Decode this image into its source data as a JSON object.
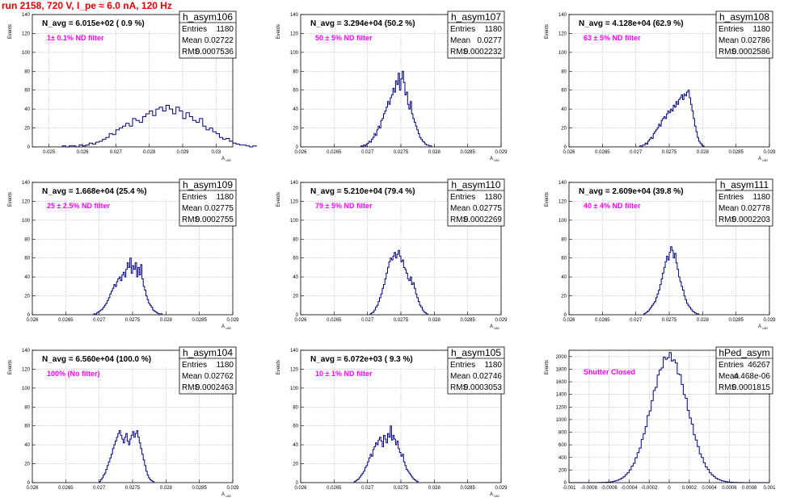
{
  "header": {
    "title": "run 2158,   720 V, I_pe ≈ 6.0 nA, 120 Hz"
  },
  "colors": {
    "histogram": "#000080",
    "annotation": "#ff00ff",
    "title": "#e00000",
    "grid": "#b0b0b0"
  },
  "chart_data": [
    {
      "type": "bar",
      "name": "h_asym106",
      "stats": {
        "entries_label": "Entries",
        "entries": "1180",
        "mean_label": "Mean",
        "mean": "0.02722",
        "rms_label": "RMS",
        "rms": "0.0007536"
      },
      "navg_text": "N_avg = 6.015e+02 ( 0.9 %)",
      "filter_text": "1± 0.1% ND filter",
      "xlabel": "A_UID",
      "ylabel": "Events",
      "xlim": [
        0.0245,
        0.0305
      ],
      "ylim": [
        0,
        140
      ],
      "xticks": [
        "0.025",
        "0.026",
        "0.027",
        "0.028",
        "0.029",
        "0.03"
      ],
      "xtick_values": [
        0.025,
        0.026,
        0.027,
        0.028,
        0.029,
        0.03
      ],
      "yticks": [
        "0",
        "20",
        "40",
        "60",
        "80",
        "100",
        "120",
        "140"
      ],
      "ytick_values": [
        0,
        20,
        40,
        60,
        80,
        100,
        120,
        140
      ],
      "bin_lo": 0.0254,
      "bin_w": 0.0001,
      "values": [
        1,
        0,
        1,
        1,
        0,
        2,
        1,
        2,
        4,
        3,
        5,
        6,
        8,
        10,
        14,
        13,
        18,
        20,
        22,
        25,
        22,
        30,
        28,
        26,
        32,
        35,
        38,
        33,
        40,
        42,
        38,
        44,
        40,
        35,
        42,
        38,
        30,
        36,
        32,
        28,
        26,
        30,
        22,
        18,
        20,
        16,
        14,
        10,
        8,
        9,
        6,
        4,
        3,
        2,
        2,
        1,
        0,
        1
      ]
    },
    {
      "type": "bar",
      "name": "h_asym107",
      "stats": {
        "entries_label": "Entries",
        "entries": "1180",
        "mean_label": "Mean",
        "mean": "0.0277",
        "rms_label": "RMS",
        "rms": "0.0002232"
      },
      "navg_text": "N_avg = 3.294e+04 (50.2 %)",
      "filter_text": "50 ± 5% ND filter",
      "xlabel": "A_UID",
      "ylabel": "Events",
      "xlim": [
        0.026,
        0.029
      ],
      "ylim": [
        0,
        140
      ],
      "xticks": [
        "0.026",
        "0.0265",
        "0.027",
        "0.0275",
        "0.028",
        "0.0285",
        "0.029"
      ],
      "xtick_values": [
        0.026,
        0.0265,
        0.027,
        0.0275,
        0.028,
        0.0285,
        0.029
      ],
      "yticks": [
        "0",
        "20",
        "40",
        "60",
        "80",
        "100",
        "120",
        "140"
      ],
      "ytick_values": [
        0,
        20,
        40,
        60,
        80,
        100,
        120,
        140
      ],
      "bin_lo": 0.0269,
      "bin_w": 2e-05,
      "values": [
        1,
        0,
        2,
        1,
        3,
        4,
        6,
        5,
        8,
        10,
        14,
        12,
        18,
        22,
        20,
        28,
        30,
        35,
        38,
        42,
        48,
        45,
        52,
        55,
        62,
        58,
        70,
        66,
        78,
        60,
        72,
        80,
        68,
        55,
        58,
        45,
        40,
        48,
        35,
        30,
        26,
        22,
        18,
        14,
        10,
        8,
        6,
        5,
        3,
        2,
        2,
        1,
        1
      ]
    },
    {
      "type": "bar",
      "name": "h_asym108",
      "stats": {
        "entries_label": "Entries",
        "entries": "1180",
        "mean_label": "Mean",
        "mean": "0.02786",
        "rms_label": "RMS",
        "rms": "0.0002586"
      },
      "navg_text": "N_avg = 4.128e+04 (62.9 %)",
      "filter_text": "63 ± 5% ND filter",
      "xlabel": "A_UID",
      "ylabel": "Events",
      "xlim": [
        0.026,
        0.029
      ],
      "ylim": [
        0,
        140
      ],
      "xticks": [
        "0.026",
        "0.0265",
        "0.027",
        "0.0275",
        "0.028",
        "0.0285",
        "0.029"
      ],
      "xtick_values": [
        0.026,
        0.0265,
        0.027,
        0.0275,
        0.028,
        0.0285,
        0.029
      ],
      "yticks": [
        "0",
        "20",
        "40",
        "60",
        "80",
        "100",
        "120",
        "140"
      ],
      "ytick_values": [
        0,
        20,
        40,
        60,
        80,
        100,
        120,
        140
      ],
      "bin_lo": 0.02706,
      "bin_w": 2e-05,
      "values": [
        1,
        0,
        2,
        2,
        4,
        3,
        6,
        8,
        10,
        9,
        14,
        16,
        18,
        20,
        24,
        22,
        28,
        30,
        32,
        30,
        35,
        38,
        36,
        40,
        38,
        44,
        42,
        48,
        45,
        50,
        52,
        55,
        50,
        56,
        54,
        58,
        60,
        52,
        45,
        38,
        30,
        22,
        16,
        10,
        6,
        4,
        2,
        1
      ]
    },
    {
      "type": "bar",
      "name": "h_asym109",
      "stats": {
        "entries_label": "Entries",
        "entries": "1180",
        "mean_label": "Mean",
        "mean": "0.02775",
        "rms_label": "RMS",
        "rms": "0.0002755"
      },
      "navg_text": "N_avg = 1.668e+04 (25.4 %)",
      "filter_text": "25 ± 2.5% ND filter",
      "xlabel": "A_UID",
      "ylabel": "Events",
      "xlim": [
        0.026,
        0.029
      ],
      "ylim": [
        0,
        140
      ],
      "xticks": [
        "0.026",
        "0.0265",
        "0.027",
        "0.0275",
        "0.028",
        "0.0285",
        "0.029"
      ],
      "xtick_values": [
        0.026,
        0.0265,
        0.027,
        0.0275,
        0.028,
        0.0285,
        0.029
      ],
      "yticks": [
        "0",
        "20",
        "40",
        "60",
        "80",
        "100",
        "120",
        "140"
      ],
      "ytick_values": [
        0,
        20,
        40,
        60,
        80,
        100,
        120,
        140
      ],
      "bin_lo": 0.02692,
      "bin_w": 2e-05,
      "values": [
        1,
        0,
        2,
        3,
        4,
        5,
        6,
        8,
        10,
        12,
        15,
        18,
        22,
        25,
        28,
        32,
        30,
        35,
        38,
        40,
        36,
        42,
        45,
        40,
        48,
        55,
        50,
        60,
        44,
        52,
        48,
        55,
        40,
        50,
        42,
        53,
        38,
        30,
        26,
        20,
        16,
        12,
        10,
        8,
        5,
        4,
        3,
        2,
        1,
        1,
        1
      ]
    },
    {
      "type": "bar",
      "name": "h_asym110",
      "stats": {
        "entries_label": "Entries",
        "entries": "1180",
        "mean_label": "Mean",
        "mean": "0.02775",
        "rms_label": "RMS",
        "rms": "0.0002269"
      },
      "navg_text": "N_avg = 5.210e+04 (79.4 %)",
      "filter_text": "79 ± 5% ND filter",
      "xlabel": "A_UID",
      "ylabel": "Events",
      "xlim": [
        0.026,
        0.029
      ],
      "ylim": [
        0,
        140
      ],
      "xticks": [
        "0.026",
        "0.0265",
        "0.027",
        "0.0275",
        "0.028",
        "0.0285",
        "0.029"
      ],
      "xtick_values": [
        0.026,
        0.0265,
        0.027,
        0.0275,
        0.028,
        0.0285,
        0.029
      ],
      "yticks": [
        "0",
        "20",
        "40",
        "60",
        "80",
        "100",
        "120",
        "140"
      ],
      "ytick_values": [
        0,
        20,
        40,
        60,
        80,
        100,
        120,
        140
      ],
      "bin_lo": 0.02704,
      "bin_w": 2e-05,
      "values": [
        1,
        2,
        3,
        5,
        8,
        10,
        14,
        18,
        22,
        28,
        32,
        38,
        44,
        50,
        56,
        60,
        58,
        62,
        66,
        60,
        64,
        68,
        62,
        56,
        58,
        50,
        48,
        44,
        38,
        36,
        40,
        32,
        34,
        28,
        22,
        18,
        14,
        10,
        8,
        5,
        3,
        2,
        1
      ]
    },
    {
      "type": "bar",
      "name": "h_asym111",
      "stats": {
        "entries_label": "Entries",
        "entries": "1180",
        "mean_label": "Mean",
        "mean": "0.02778",
        "rms_label": "RMS",
        "rms": "0.0002203"
      },
      "navg_text": "N_avg = 2.609e+04 (39.8 %)",
      "filter_text": "40 ± 4% ND filter",
      "xlabel": "A_UID",
      "ylabel": "Events",
      "xlim": [
        0.026,
        0.029
      ],
      "ylim": [
        0,
        140
      ],
      "xticks": [
        "0.026",
        "0.0265",
        "0.027",
        "0.0275",
        "0.028",
        "0.0285",
        "0.029"
      ],
      "xtick_values": [
        0.026,
        0.0265,
        0.027,
        0.0275,
        0.028,
        0.0285,
        0.029
      ],
      "yticks": [
        "0",
        "20",
        "40",
        "60",
        "80",
        "100",
        "120",
        "140"
      ],
      "ytick_values": [
        0,
        20,
        40,
        60,
        80,
        100,
        120,
        140
      ],
      "bin_lo": 0.02712,
      "bin_w": 2e-05,
      "values": [
        1,
        2,
        3,
        4,
        6,
        8,
        10,
        12,
        14,
        18,
        22,
        26,
        32,
        38,
        44,
        50,
        56,
        62,
        58,
        66,
        72,
        68,
        60,
        65,
        55,
        48,
        40,
        35,
        30,
        26,
        20,
        16,
        12,
        10,
        8,
        6,
        4,
        3,
        2,
        1,
        1
      ]
    },
    {
      "type": "bar",
      "name": "h_asym104",
      "stats": {
        "entries_label": "Entries",
        "entries": "1180",
        "mean_label": "Mean",
        "mean": "0.02762",
        "rms_label": "RMS",
        "rms": "0.0002463"
      },
      "navg_text": "N_avg = 6.560e+04 (100.0 %)",
      "filter_text": "100% (No filter)",
      "xlabel": "A_UID",
      "ylabel": "Events",
      "xlim": [
        0.026,
        0.029
      ],
      "ylim": [
        0,
        140
      ],
      "xticks": [
        "0.026",
        "0.0265",
        "0.027",
        "0.0275",
        "0.028",
        "0.0285",
        "0.029"
      ],
      "xtick_values": [
        0.026,
        0.0265,
        0.027,
        0.0275,
        0.028,
        0.0285,
        0.029
      ],
      "yticks": [
        "0",
        "20",
        "40",
        "60",
        "80",
        "100",
        "120",
        "140"
      ],
      "ytick_values": [
        0,
        20,
        40,
        60,
        80,
        100,
        120,
        140
      ],
      "bin_lo": 0.027,
      "bin_w": 2e-05,
      "values": [
        1,
        3,
        5,
        8,
        10,
        14,
        18,
        22,
        26,
        30,
        36,
        40,
        44,
        48,
        52,
        55,
        50,
        46,
        42,
        48,
        52,
        44,
        40,
        46,
        50,
        54,
        48,
        52,
        55,
        48,
        42,
        36,
        30,
        24,
        18,
        12,
        8,
        5,
        3,
        2,
        1
      ]
    },
    {
      "type": "bar",
      "name": "h_asym105",
      "stats": {
        "entries_label": "Entries",
        "entries": "1180",
        "mean_label": "Mean",
        "mean": "0.02746",
        "rms_label": "RMS",
        "rms": "0.0003053"
      },
      "navg_text": "N_avg = 6.072e+03 ( 9.3 %)",
      "filter_text": "10 ± 1% ND filter",
      "xlabel": "A_UID",
      "ylabel": "Events",
      "xlim": [
        0.026,
        0.029
      ],
      "ylim": [
        0,
        140
      ],
      "xticks": [
        "0.026",
        "0.0265",
        "0.027",
        "0.0275",
        "0.028",
        "0.0285",
        "0.029"
      ],
      "xtick_values": [
        0.026,
        0.0265,
        0.027,
        0.0275,
        0.028,
        0.0285,
        0.029
      ],
      "yticks": [
        "0",
        "20",
        "40",
        "60",
        "80",
        "100",
        "120",
        "140"
      ],
      "ytick_values": [
        0,
        20,
        40,
        60,
        80,
        100,
        120,
        140
      ],
      "bin_lo": 0.0268,
      "bin_w": 2e-05,
      "values": [
        1,
        2,
        3,
        4,
        6,
        8,
        10,
        12,
        16,
        18,
        22,
        26,
        30,
        28,
        35,
        38,
        42,
        40,
        45,
        48,
        44,
        38,
        50,
        46,
        42,
        52,
        48,
        60,
        45,
        50,
        46,
        40,
        44,
        36,
        32,
        28,
        30,
        22,
        18,
        14,
        12,
        10,
        8,
        6,
        4,
        3,
        2,
        1
      ]
    },
    {
      "type": "bar",
      "name": "hPed_asym",
      "stats": {
        "entries_label": "Entries",
        "entries": "46267",
        "mean_label": "Mean",
        "mean": "4.468e-06",
        "rms_label": "RMS",
        "rms": "0.0001815"
      },
      "navg_text": "",
      "filter_text": "Shutter Closed",
      "xlabel": "",
      "ylabel": "Events",
      "xlim": [
        -0.001,
        0.001
      ],
      "ylim": [
        0,
        2100
      ],
      "xticks": [
        "-0.001",
        "-0.0008",
        "-0.0006",
        "-0.0004",
        "-0.0002",
        "0",
        "0.0002",
        "0.0004",
        "0.0006",
        "0.0008",
        "0.001"
      ],
      "xtick_values": [
        -0.001,
        -0.0008,
        -0.0006,
        -0.0004,
        -0.0002,
        0,
        0.0002,
        0.0004,
        0.0006,
        0.0008,
        0.001
      ],
      "yticks": [
        "0",
        "200",
        "400",
        "600",
        "800",
        "1000",
        "1200",
        "1400",
        "1600",
        "1800",
        "2000"
      ],
      "ytick_values": [
        0,
        200,
        400,
        600,
        800,
        1000,
        1200,
        1400,
        1600,
        1800,
        2000
      ],
      "gaussian": {
        "mean": 0.0,
        "sigma": 0.000182,
        "peak": 2010,
        "bin_lo": -0.001,
        "bin_w": 2e-05
      }
    }
  ]
}
